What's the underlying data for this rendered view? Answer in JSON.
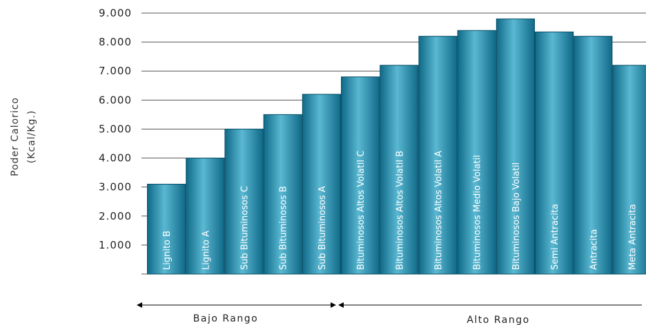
{
  "chart_data": {
    "type": "bar",
    "ylabel": [
      "Poder Calorico",
      "(Kcal/Kg.)"
    ],
    "ylim": [
      0,
      9000
    ],
    "ytick_values": [
      1000,
      2000,
      3000,
      4000,
      5000,
      6000,
      7000,
      8000,
      9000
    ],
    "ytick_labels": [
      "1.000",
      "2.000",
      "3.000",
      "4.000",
      "5.000",
      "6.000",
      "7.000",
      "8.000",
      "9.000"
    ],
    "grid": true,
    "categories": [
      "Lignito B",
      "Lignito A",
      "Sub Bituminosos C",
      "Sub Bituminosos B",
      "Sub Bituminosos A",
      "Bituminosos Altos Volatil C",
      "Bituminosos Altos Volatil B",
      "Bituminosos Altos Volatil A",
      "Bituminosos Medio Volatil",
      "Bituminosos Bajo Volatil",
      "Semi Antracita",
      "Antracita",
      "Meta Antracita"
    ],
    "values": [
      3100,
      4000,
      5000,
      5500,
      6200,
      6800,
      7200,
      8200,
      8400,
      8800,
      8350,
      8200,
      7200
    ],
    "groups": [
      {
        "label": "Bajo Rango",
        "from": 0,
        "to": 4
      },
      {
        "label": "Alto Rango",
        "from": 5,
        "to": 12
      }
    ],
    "bar_color": "#1f87a8"
  }
}
